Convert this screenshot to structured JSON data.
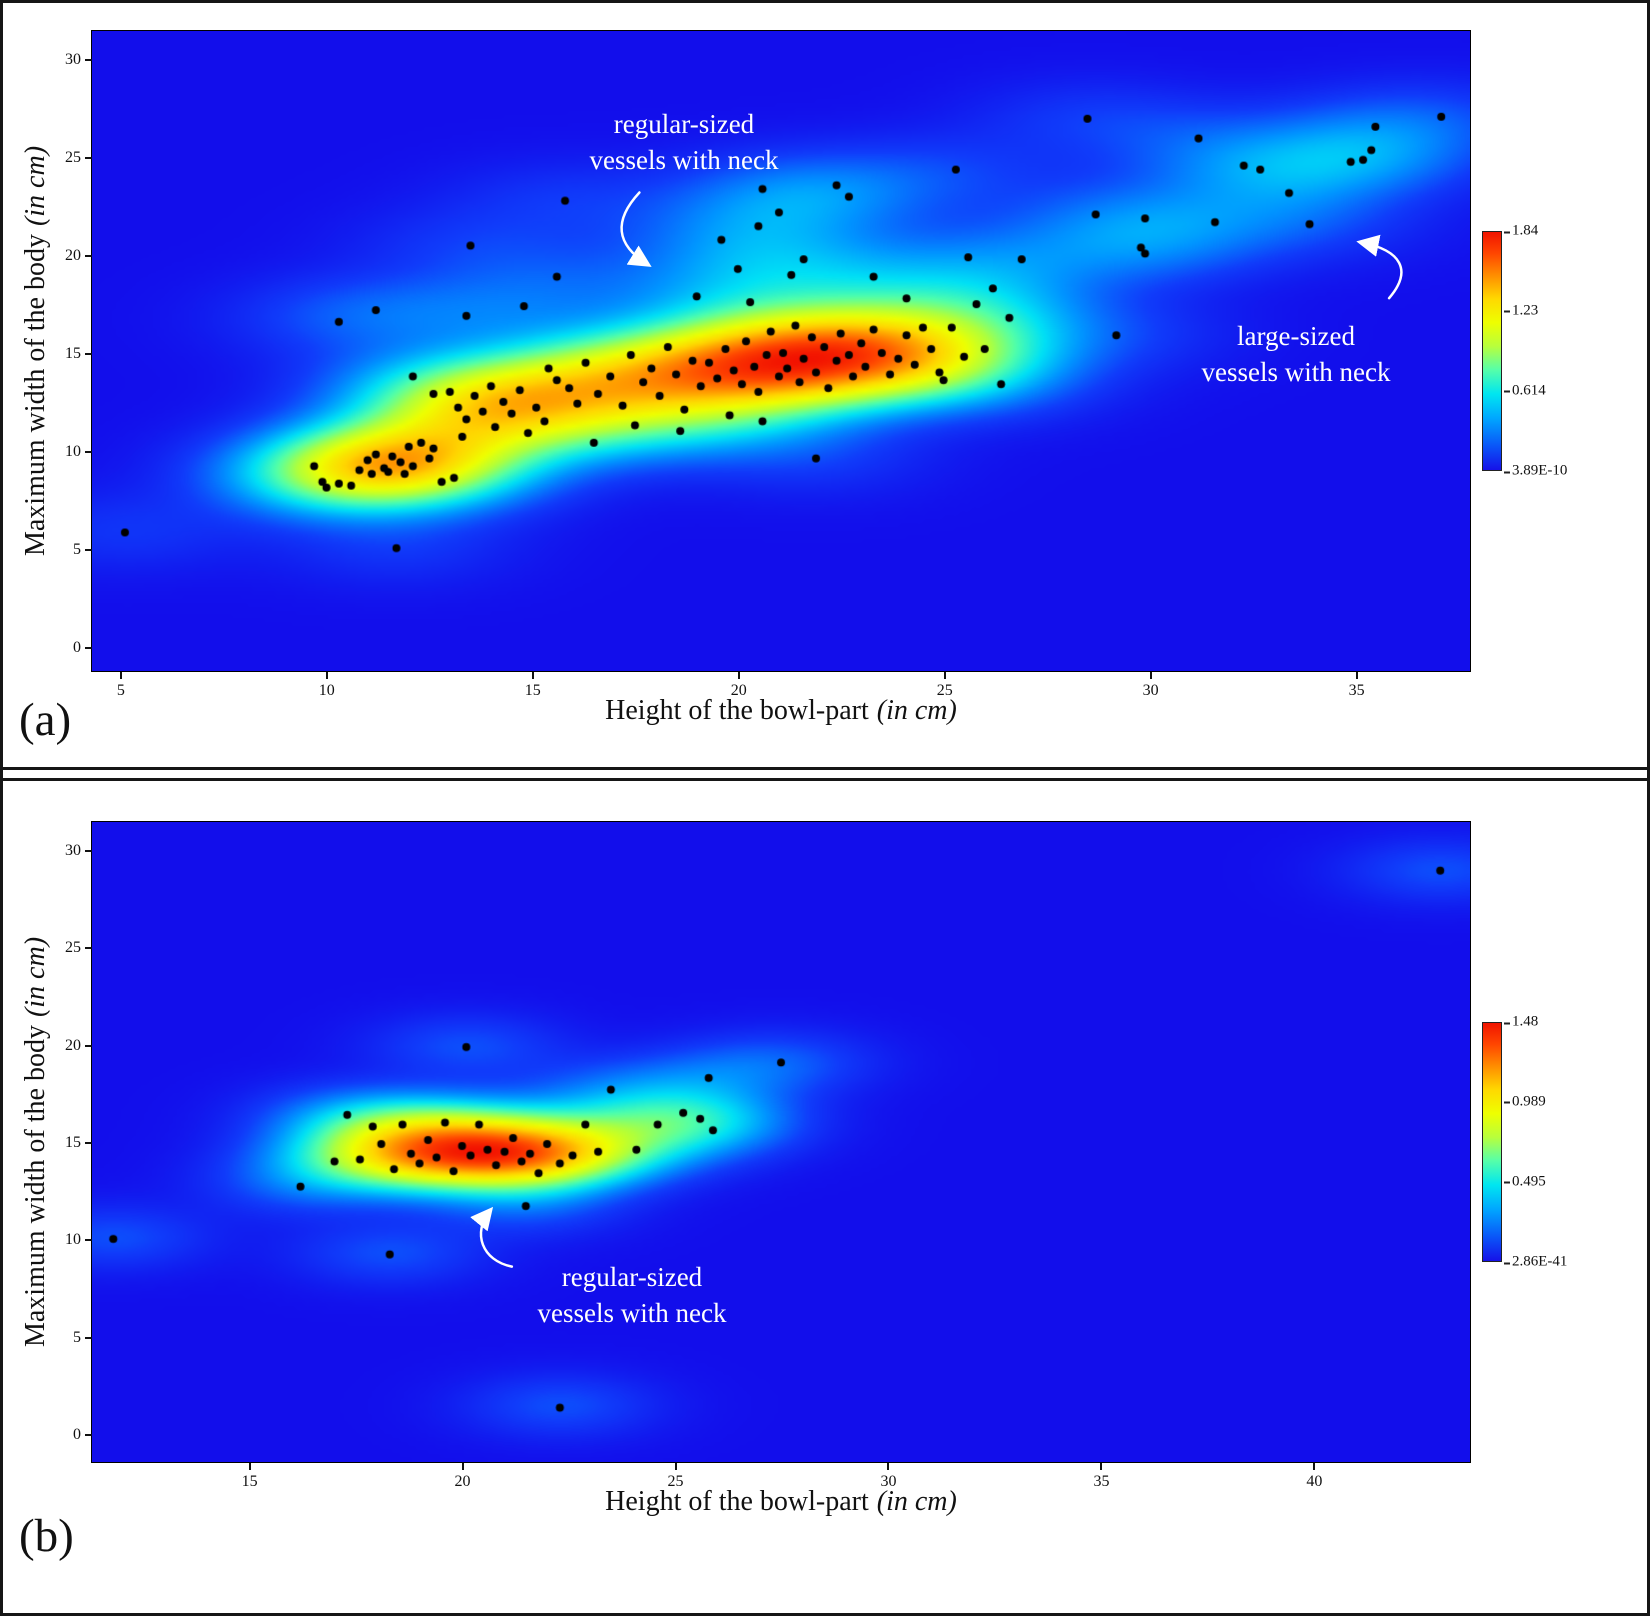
{
  "style": {
    "background": "#1411ec",
    "point_color": "#000000",
    "annotation_color": "#ffffff",
    "gamma": 0.8,
    "colormap_stops": [
      [
        0.0,
        [
          18,
          14,
          235
        ]
      ],
      [
        0.1,
        [
          16,
          60,
          250
        ]
      ],
      [
        0.22,
        [
          0,
          150,
          255
        ]
      ],
      [
        0.32,
        [
          0,
          225,
          245
        ]
      ],
      [
        0.42,
        [
          80,
          255,
          170
        ]
      ],
      [
        0.52,
        [
          175,
          255,
          60
        ]
      ],
      [
        0.62,
        [
          238,
          255,
          0
        ]
      ],
      [
        0.72,
        [
          255,
          214,
          0
        ]
      ],
      [
        0.82,
        [
          255,
          140,
          0
        ]
      ],
      [
        0.91,
        [
          255,
          70,
          0
        ]
      ],
      [
        1.0,
        [
          242,
          18,
          0
        ]
      ]
    ]
  },
  "chart_data": [
    {
      "type": "heatmap",
      "subtype": "kde-density-with-scatter",
      "panel_label": "(a)",
      "xlabel": "Height of the bowl-part",
      "xlabel_unit": "(in cm)",
      "ylabel": "Maximum width of the body",
      "ylabel_unit": "(in cm)",
      "xlim": [
        4.3,
        37.8
      ],
      "ylim": [
        -1.3,
        31.5
      ],
      "x_ticks": [
        5,
        10,
        15,
        20,
        25,
        30,
        35
      ],
      "y_ticks": [
        0,
        5,
        10,
        15,
        20,
        25,
        30
      ],
      "grid": false,
      "legend_position": "right-colorbar",
      "colorbar_labels": [
        "1.84",
        "1.23",
        "0.614",
        "3.89E-10"
      ],
      "kde_bandwidth": [
        1.9,
        1.35
      ],
      "annotations": [
        {
          "lines": [
            "regular-sized",
            "vessels with neck"
          ]
        },
        {
          "lines": [
            "large-sized",
            "vessels with neck"
          ]
        }
      ],
      "points": [
        [
          5.1,
          5.8
        ],
        [
          11.7,
          5.0
        ],
        [
          9.7,
          9.2
        ],
        [
          9.9,
          8.4
        ],
        [
          10.0,
          8.1
        ],
        [
          10.3,
          8.3
        ],
        [
          10.6,
          8.2
        ],
        [
          10.8,
          9.0
        ],
        [
          11.0,
          9.5
        ],
        [
          11.1,
          8.8
        ],
        [
          11.2,
          9.8
        ],
        [
          11.4,
          9.1
        ],
        [
          11.5,
          8.9
        ],
        [
          11.6,
          9.7
        ],
        [
          11.8,
          9.4
        ],
        [
          11.9,
          8.8
        ],
        [
          12.0,
          10.2
        ],
        [
          12.1,
          9.2
        ],
        [
          12.3,
          10.4
        ],
        [
          12.5,
          9.6
        ],
        [
          12.6,
          10.1
        ],
        [
          12.8,
          8.4
        ],
        [
          13.1,
          8.6
        ],
        [
          13.3,
          10.7
        ],
        [
          10.3,
          16.6
        ],
        [
          11.2,
          17.2
        ],
        [
          12.1,
          13.8
        ],
        [
          13.4,
          16.9
        ],
        [
          13.5,
          20.5
        ],
        [
          15.6,
          18.9
        ],
        [
          15.8,
          22.8
        ],
        [
          14.8,
          17.4
        ],
        [
          12.6,
          12.9
        ],
        [
          13.0,
          13.0
        ],
        [
          13.2,
          12.2
        ],
        [
          13.4,
          11.6
        ],
        [
          13.6,
          12.8
        ],
        [
          13.8,
          12.0
        ],
        [
          14.0,
          13.3
        ],
        [
          14.1,
          11.2
        ],
        [
          14.3,
          12.5
        ],
        [
          14.5,
          11.9
        ],
        [
          14.7,
          13.1
        ],
        [
          14.9,
          10.9
        ],
        [
          15.1,
          12.2
        ],
        [
          15.3,
          11.5
        ],
        [
          15.6,
          13.6
        ],
        [
          16.1,
          12.4
        ],
        [
          15.4,
          14.2
        ],
        [
          15.9,
          13.2
        ],
        [
          16.3,
          14.5
        ],
        [
          16.6,
          12.9
        ],
        [
          16.9,
          13.8
        ],
        [
          17.2,
          12.3
        ],
        [
          17.4,
          14.9
        ],
        [
          17.7,
          13.5
        ],
        [
          17.9,
          14.2
        ],
        [
          16.5,
          10.4
        ],
        [
          18.1,
          12.8
        ],
        [
          18.3,
          15.3
        ],
        [
          18.5,
          13.9
        ],
        [
          18.7,
          12.1
        ],
        [
          18.9,
          14.6
        ],
        [
          19.1,
          13.3
        ],
        [
          17.5,
          11.3
        ],
        [
          18.6,
          11.0
        ],
        [
          19.3,
          14.5
        ],
        [
          19.5,
          13.7
        ],
        [
          19.7,
          15.2
        ],
        [
          19.9,
          14.1
        ],
        [
          20.1,
          13.4
        ],
        [
          20.2,
          15.6
        ],
        [
          20.4,
          14.3
        ],
        [
          20.5,
          13.0
        ],
        [
          20.7,
          14.9
        ],
        [
          20.8,
          16.1
        ],
        [
          21.0,
          13.8
        ],
        [
          21.1,
          15.0
        ],
        [
          21.2,
          14.2
        ],
        [
          21.4,
          16.4
        ],
        [
          21.5,
          13.5
        ],
        [
          21.6,
          14.7
        ],
        [
          21.8,
          15.8
        ],
        [
          21.9,
          14.0
        ],
        [
          22.1,
          15.3
        ],
        [
          22.2,
          13.2
        ],
        [
          22.4,
          14.6
        ],
        [
          22.5,
          16.0
        ],
        [
          22.7,
          14.9
        ],
        [
          22.8,
          13.8
        ],
        [
          23.0,
          15.5
        ],
        [
          23.1,
          14.3
        ],
        [
          23.3,
          16.2
        ],
        [
          23.5,
          15.0
        ],
        [
          23.7,
          13.9
        ],
        [
          23.9,
          14.7
        ],
        [
          24.1,
          15.9
        ],
        [
          24.3,
          14.4
        ],
        [
          24.5,
          16.3
        ],
        [
          24.7,
          15.2
        ],
        [
          24.9,
          14.0
        ],
        [
          19.8,
          11.8
        ],
        [
          20.6,
          11.5
        ],
        [
          21.9,
          9.6
        ],
        [
          19.0,
          17.9
        ],
        [
          19.6,
          20.8
        ],
        [
          20.0,
          19.3
        ],
        [
          20.5,
          21.5
        ],
        [
          20.6,
          23.4
        ],
        [
          21.0,
          22.2
        ],
        [
          21.6,
          19.8
        ],
        [
          22.4,
          23.6
        ],
        [
          22.7,
          23.0
        ],
        [
          23.3,
          18.9
        ],
        [
          20.3,
          17.6
        ],
        [
          21.3,
          19.0
        ],
        [
          25.2,
          16.3
        ],
        [
          25.5,
          14.8
        ],
        [
          25.8,
          17.5
        ],
        [
          26.0,
          15.2
        ],
        [
          26.2,
          18.3
        ],
        [
          26.4,
          13.4
        ],
        [
          26.6,
          16.8
        ],
        [
          25.6,
          19.9
        ],
        [
          26.9,
          19.8
        ],
        [
          25.3,
          24.4
        ],
        [
          24.1,
          17.8
        ],
        [
          25.0,
          13.6
        ],
        [
          28.5,
          27.0
        ],
        [
          28.7,
          22.1
        ],
        [
          29.2,
          15.9
        ],
        [
          29.8,
          20.4
        ],
        [
          29.9,
          21.9
        ],
        [
          29.9,
          20.1
        ],
        [
          31.2,
          26.0
        ],
        [
          31.6,
          21.7
        ],
        [
          32.3,
          24.6
        ],
        [
          32.7,
          24.4
        ],
        [
          33.4,
          23.2
        ],
        [
          33.9,
          21.6
        ],
        [
          34.9,
          24.8
        ],
        [
          35.2,
          24.9
        ],
        [
          35.4,
          25.4
        ],
        [
          35.5,
          26.6
        ],
        [
          37.1,
          27.1
        ]
      ]
    },
    {
      "type": "heatmap",
      "subtype": "kde-density-with-scatter",
      "panel_label": "(b)",
      "xlabel": "Height of the bowl-part",
      "xlabel_unit": "(in cm)",
      "ylabel": "Maximum width of the body",
      "ylabel_unit": "(in cm)",
      "xlim": [
        11.3,
        43.7
      ],
      "ylim": [
        -1.5,
        31.5
      ],
      "x_ticks": [
        15,
        20,
        25,
        30,
        35,
        40
      ],
      "y_ticks": [
        0,
        5,
        10,
        15,
        20,
        25,
        30
      ],
      "grid": false,
      "legend_position": "right-colorbar",
      "colorbar_labels": [
        "1.48",
        "0.989",
        "0.495",
        "2.86E-41"
      ],
      "kde_bandwidth": [
        1.5,
        1.1
      ],
      "annotations": [
        {
          "lines": [
            "regular-sized",
            "vessels with neck"
          ]
        }
      ],
      "points": [
        [
          11.8,
          10.0
        ],
        [
          16.2,
          12.7
        ],
        [
          17.0,
          14.0
        ],
        [
          17.3,
          16.4
        ],
        [
          17.6,
          14.1
        ],
        [
          17.9,
          15.8
        ],
        [
          18.1,
          14.9
        ],
        [
          18.4,
          13.6
        ],
        [
          18.6,
          15.9
        ],
        [
          18.8,
          14.4
        ],
        [
          19.0,
          13.9
        ],
        [
          19.2,
          15.1
        ],
        [
          19.4,
          14.2
        ],
        [
          19.6,
          16.0
        ],
        [
          19.8,
          13.5
        ],
        [
          20.0,
          14.8
        ],
        [
          20.2,
          14.3
        ],
        [
          20.4,
          15.9
        ],
        [
          20.6,
          14.6
        ],
        [
          20.8,
          13.8
        ],
        [
          21.0,
          14.5
        ],
        [
          21.2,
          15.2
        ],
        [
          21.4,
          14.0
        ],
        [
          21.6,
          14.4
        ],
        [
          21.8,
          13.4
        ],
        [
          22.0,
          14.9
        ],
        [
          22.3,
          13.9
        ],
        [
          22.6,
          14.3
        ],
        [
          22.9,
          15.9
        ],
        [
          23.2,
          14.5
        ],
        [
          23.5,
          17.7
        ],
        [
          24.1,
          14.6
        ],
        [
          24.6,
          15.9
        ],
        [
          25.2,
          16.5
        ],
        [
          25.6,
          16.2
        ],
        [
          25.9,
          15.6
        ],
        [
          25.8,
          18.3
        ],
        [
          20.1,
          19.9
        ],
        [
          27.5,
          19.1
        ],
        [
          21.5,
          11.7
        ],
        [
          18.3,
          9.2
        ],
        [
          22.3,
          1.3
        ],
        [
          43.0,
          29.0
        ]
      ]
    }
  ]
}
